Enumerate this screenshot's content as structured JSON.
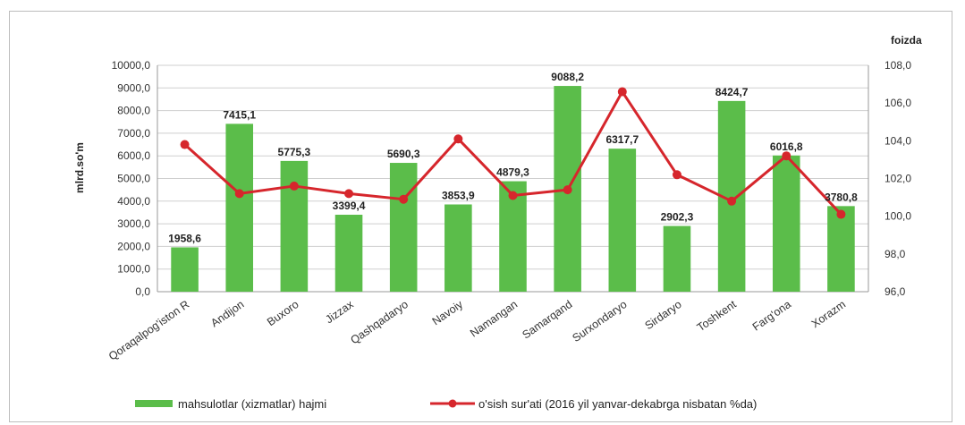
{
  "chart_data": {
    "type": "bar",
    "categories": [
      "Qoraqalpog'iston R",
      "Andijon",
      "Buxoro",
      "Jizzax",
      "Qashqadaryo",
      "Navoiy",
      "Namangan",
      "Samarqand",
      "Surxondaryo",
      "Sirdaryo",
      "Toshkent",
      "Farg'ona",
      "Xorazm"
    ],
    "series": [
      {
        "name": "mahsulotlar (xizmatlar) hajmi",
        "type": "bar",
        "axis": "left",
        "color": "#5bbd4a",
        "values": [
          1958.6,
          7415.1,
          5775.3,
          3399.4,
          5690.3,
          3853.9,
          4879.3,
          9088.2,
          6317.7,
          2902.3,
          8424.7,
          6016.8,
          3780.8
        ],
        "labels": [
          "1958,6",
          "7415,1",
          "5775,3",
          "3399,4",
          "5690,3",
          "3853,9",
          "4879,3",
          "9088,2",
          "6317,7",
          "2902,3",
          "8424,7",
          "6016,8",
          "3780,8"
        ]
      },
      {
        "name": "o'sish sur'ati (2016 yil yanvar-dekabrga nisbatan %da)",
        "type": "line",
        "axis": "right",
        "color": "#d6262c",
        "values": [
          103.8,
          101.2,
          101.6,
          101.2,
          100.9,
          104.1,
          101.1,
          101.4,
          106.6,
          102.2,
          100.8,
          103.2,
          100.1
        ]
      }
    ],
    "ylabel": "mlrd.so'm",
    "y2label": "foizda",
    "ylim": [
      0,
      10000
    ],
    "y2lim": [
      96,
      108
    ],
    "yticks": [
      "10000,0",
      "9000,0",
      "8000,0",
      "7000,0",
      "6000,0",
      "5000,0",
      "4000,0",
      "3000,0",
      "2000,0",
      "1000,0",
      "0,0"
    ],
    "y2ticks": [
      "108,0",
      "106,0",
      "104,0",
      "102,0",
      "100,0",
      "98,0",
      "96,0"
    ],
    "grid": true,
    "legend_position": "bottom"
  }
}
